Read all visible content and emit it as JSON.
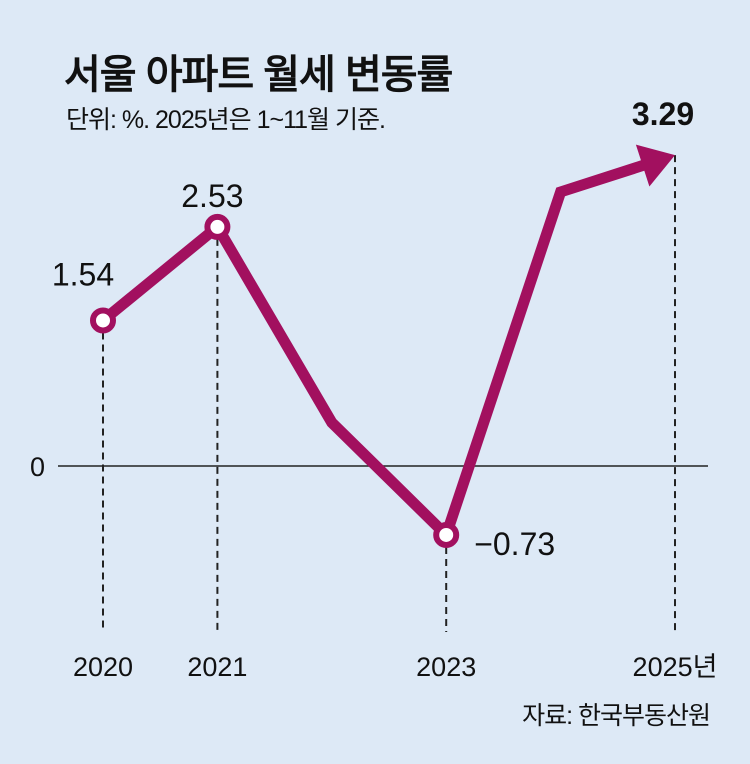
{
  "chart_data": {
    "type": "line",
    "title": "서울 아파트 월세 변동률",
    "subtitle": "단위: %. 2025년은 1~11월 기준.",
    "source": "자료: 한국부동산원",
    "x": [
      2020,
      2021,
      2022,
      2023,
      2024,
      2025
    ],
    "values": [
      1.54,
      2.53,
      0.46,
      -0.73,
      2.9,
      3.29
    ],
    "data_labels": [
      "1.54",
      "2.53",
      "",
      "−0.73",
      "",
      "3.29"
    ],
    "tick_labels": [
      {
        "x": 2020,
        "label": "2020"
      },
      {
        "x": 2021,
        "label": "2021"
      },
      {
        "x": 2023,
        "label": "2023"
      },
      {
        "x": 2025,
        "label": "2025년"
      }
    ],
    "zero_label": "0",
    "markers_at": [
      2020,
      2021,
      2023
    ],
    "ylim": [
      -1.6,
      3.5
    ],
    "xlim": [
      2020,
      2025
    ],
    "grid": false,
    "line_color": "#a2105f",
    "background": "#dde9f6"
  }
}
